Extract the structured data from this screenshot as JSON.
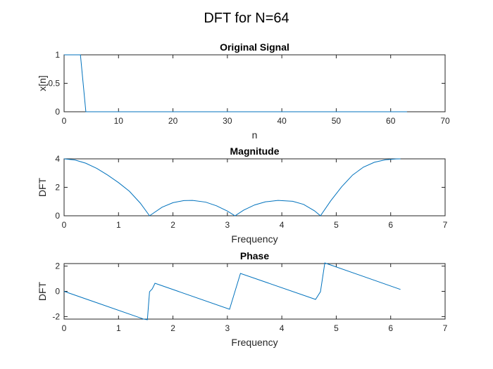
{
  "figure": {
    "title": "DFT for N=64"
  },
  "chart_data": [
    {
      "type": "line",
      "title": "Original Signal",
      "xlabel": "n",
      "ylabel": "x[n]",
      "xlim": [
        0,
        70
      ],
      "ylim": [
        0,
        1
      ],
      "xticks": [
        0,
        10,
        20,
        30,
        40,
        50,
        60,
        70
      ],
      "yticks": [
        0,
        0.5,
        1
      ],
      "xtick_labels": [
        "0",
        "10",
        "20",
        "30",
        "40",
        "50",
        "60",
        "70"
      ],
      "ytick_labels": [
        "0",
        "0.5",
        "1"
      ],
      "series": [
        {
          "color": "#0072bd",
          "x": [
            0,
            1,
            2,
            3,
            4,
            5,
            63
          ],
          "y": [
            1,
            1,
            1,
            1,
            0,
            0,
            0
          ]
        }
      ]
    },
    {
      "type": "line",
      "title": "Magnitude",
      "xlabel": "Frequency",
      "ylabel": "DFT",
      "xlim": [
        0,
        7
      ],
      "ylim": [
        0,
        4
      ],
      "xticks": [
        0,
        1,
        2,
        3,
        4,
        5,
        6,
        7
      ],
      "yticks": [
        0,
        2,
        4
      ],
      "xtick_labels": [
        "0",
        "1",
        "2",
        "3",
        "4",
        "5",
        "6",
        "7"
      ],
      "ytick_labels": [
        "0",
        "2",
        "4"
      ],
      "series": [
        {
          "color": "#0072bd",
          "x": [
            0,
            0.2,
            0.4,
            0.6,
            0.8,
            1.0,
            1.2,
            1.4,
            1.57,
            1.8,
            2.0,
            2.2,
            2.36,
            2.6,
            2.8,
            3.0,
            3.14,
            3.3,
            3.5,
            3.7,
            3.93,
            4.2,
            4.4,
            4.6,
            4.71,
            4.9,
            5.1,
            5.3,
            5.5,
            5.7,
            5.9,
            6.1,
            6.18
          ],
          "y": [
            4,
            3.92,
            3.69,
            3.33,
            2.86,
            2.33,
            1.72,
            0.89,
            0,
            0.6,
            0.92,
            1.07,
            1.08,
            0.96,
            0.7,
            0.33,
            0,
            0.4,
            0.76,
            0.98,
            1.08,
            1.02,
            0.8,
            0.35,
            0,
            1.06,
            2.04,
            2.86,
            3.42,
            3.76,
            3.93,
            3.995,
            4
          ]
        }
      ]
    },
    {
      "type": "line",
      "title": "Phase",
      "xlabel": "Frequency",
      "ylabel": "DFT",
      "xlim": [
        0,
        7
      ],
      "ylim": [
        -2.2,
        2.2
      ],
      "xticks": [
        0,
        1,
        2,
        3,
        4,
        5,
        6,
        7
      ],
      "yticks": [
        -2,
        0,
        2
      ],
      "xtick_labels": [
        "0",
        "1",
        "2",
        "3",
        "4",
        "5",
        "6",
        "7"
      ],
      "ytick_labels": [
        "-2",
        "0",
        "2"
      ],
      "series": [
        {
          "color": "#0072bd",
          "x": [
            0,
            1.47,
            1.53,
            1.57,
            1.62,
            1.67,
            3.04,
            3.24,
            4.62,
            4.71,
            4.79,
            6.18
          ],
          "y": [
            0,
            -2.21,
            -2.25,
            -0.03,
            0.2,
            0.64,
            -1.42,
            1.42,
            -0.64,
            -0.03,
            2.25,
            0.15
          ]
        }
      ]
    }
  ]
}
